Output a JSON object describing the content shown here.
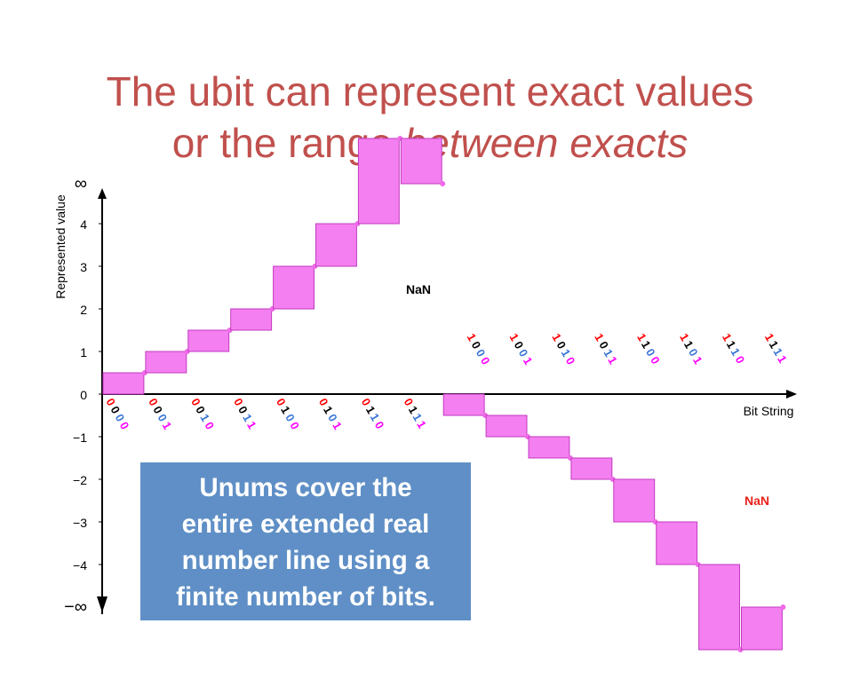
{
  "title": {
    "line1": "The ubit can represent exact values",
    "line2_plain": "or the range ",
    "line2_italic": "between exacts"
  },
  "callout": {
    "lines": [
      "Unums cover the",
      "entire extended real",
      "number line using a",
      "finite number of bits."
    ]
  },
  "colors": {
    "title": "#c0504d",
    "box_fill": "#f47ff0",
    "box_stroke": "#c23ac0",
    "dot": "#f06ae8",
    "bit_sign": "#ff0000",
    "bit_exponent": "#000000",
    "bit_fraction": "#3a75d6",
    "bit_ubit": "#ff00ff",
    "callout_bg": "#5f8fc6"
  },
  "chart_data": {
    "type": "step",
    "ylabel": "Represented value",
    "xlabel": "Bit String",
    "yticks": [
      "∞",
      "4",
      "3",
      "2",
      "1",
      "0",
      "−1",
      "−2",
      "−3",
      "−4",
      "−∞"
    ],
    "positive_nan_label": "NaN",
    "negative_nan_label": "NaN",
    "bit_strings": [
      "0000",
      "0001",
      "0010",
      "0011",
      "0100",
      "0101",
      "0110",
      "0111",
      "1000",
      "1001",
      "1010",
      "1011",
      "1100",
      "1101",
      "1110",
      "1111"
    ],
    "positive_values": [
      0,
      0.5,
      1,
      1.5,
      2,
      3,
      4,
      6,
      "∞"
    ],
    "negative_values": [
      0,
      -0.5,
      -1,
      -1.5,
      -2,
      -3,
      -4,
      -6,
      "−∞"
    ],
    "ylim": [
      "−∞",
      "∞"
    ]
  }
}
